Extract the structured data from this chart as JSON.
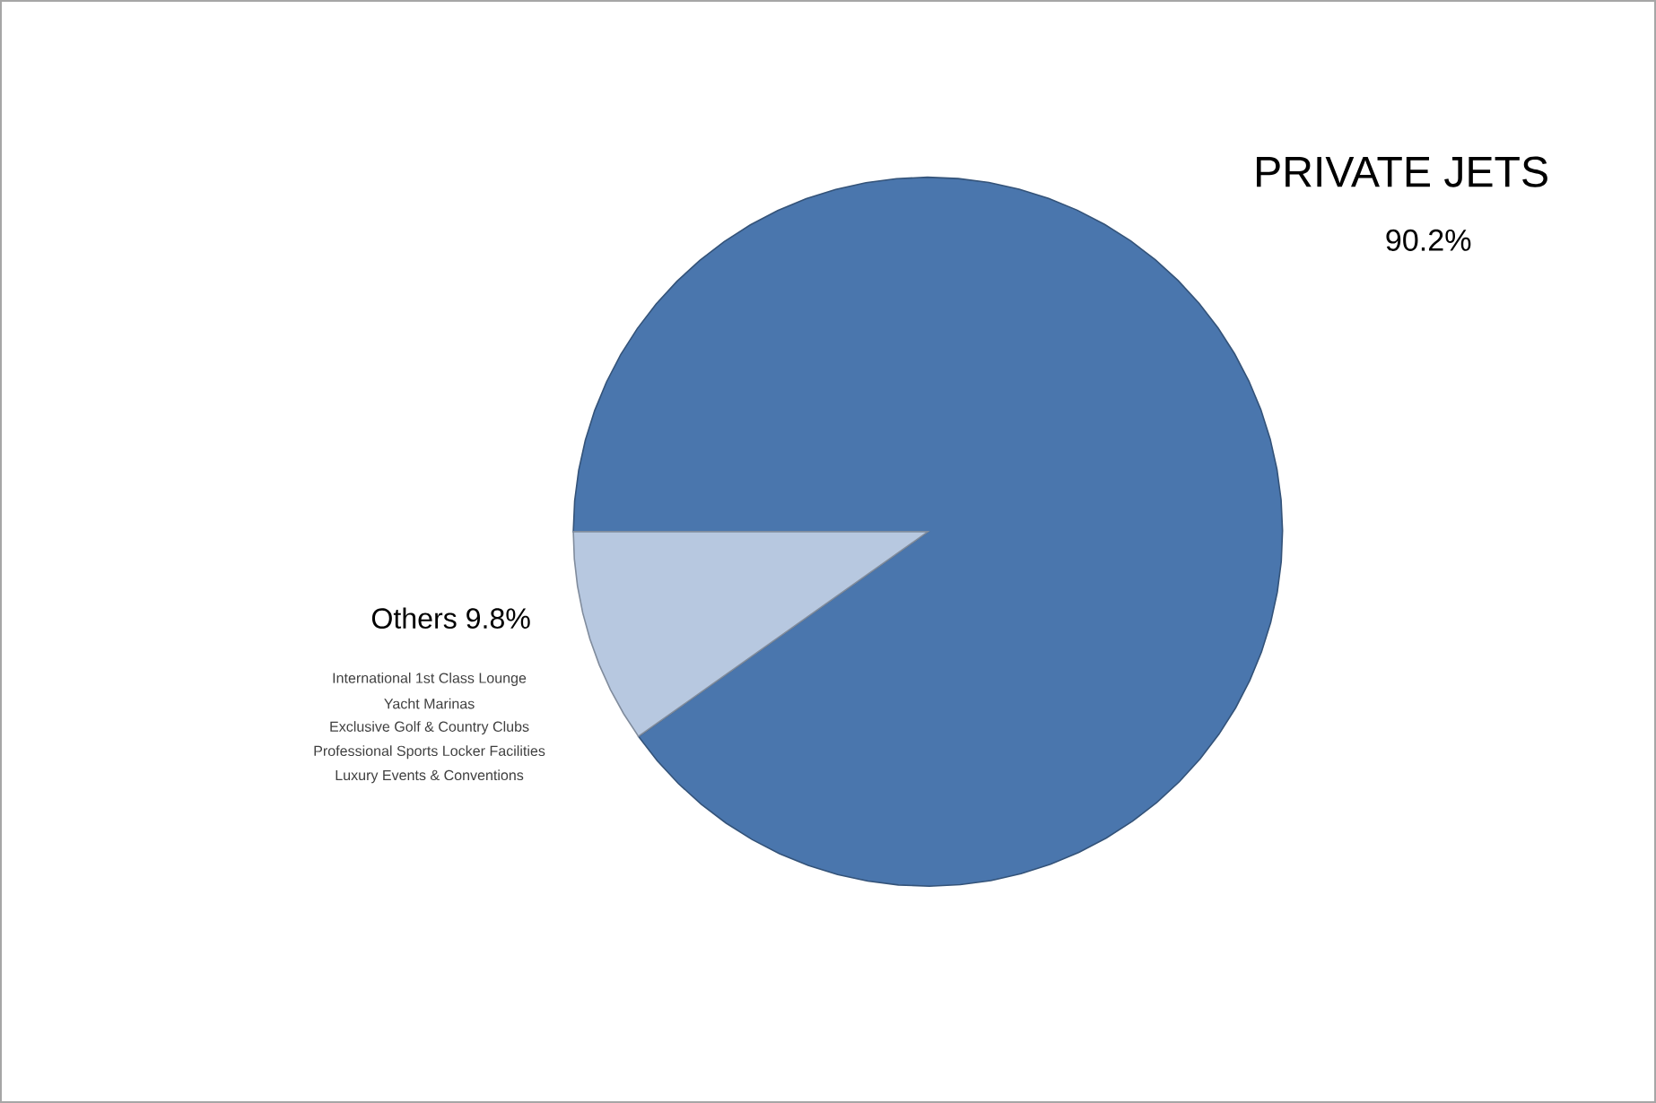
{
  "chart_data": {
    "type": "pie",
    "categories": [
      "PRIVATE JETS",
      "Others"
    ],
    "values": [
      90.2,
      9.8
    ],
    "colors": [
      "#4a76ad",
      "#b7c8e0"
    ],
    "value_labels": [
      "90.2%",
      "9.8%"
    ],
    "annotations": [
      "International 1st Class Lounge",
      "Yacht Marinas",
      "Exclusive Golf & Country Clubs",
      "Professional Sports Locker Facilities",
      "Luxury Events & Conventions"
    ]
  }
}
